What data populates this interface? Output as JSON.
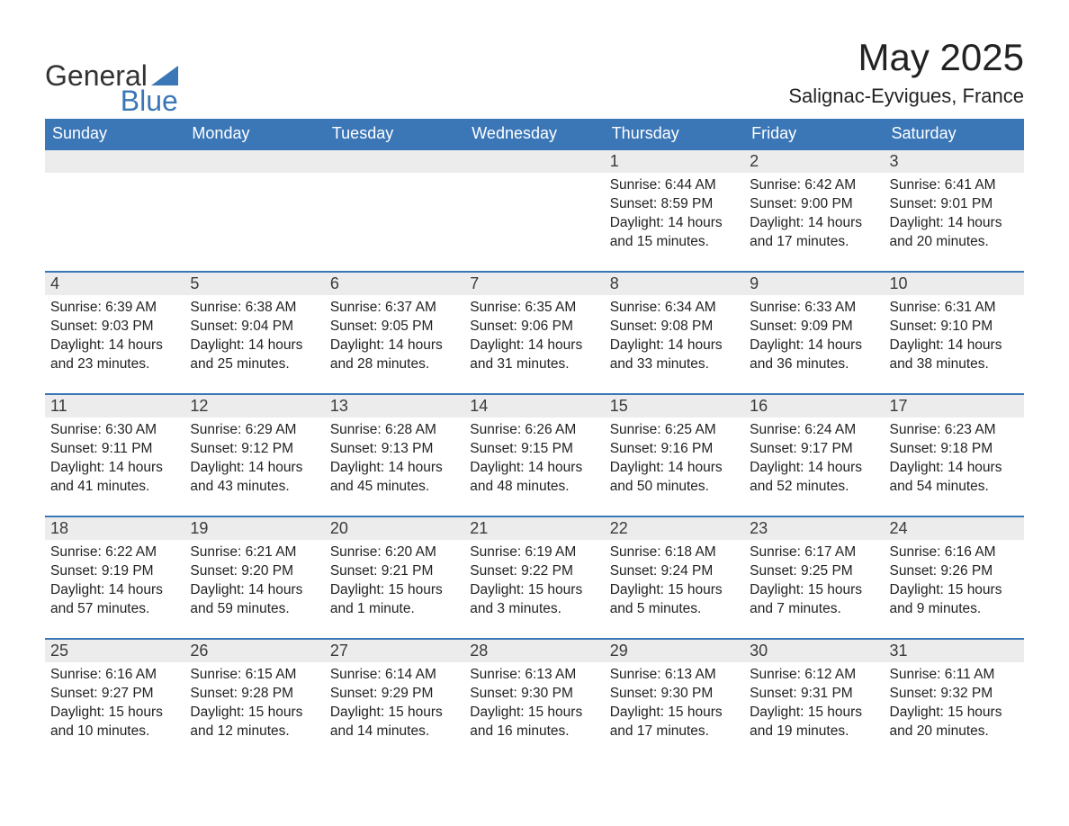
{
  "logo": {
    "word1": "General",
    "word2": "Blue",
    "accent_color": "#3b77b7"
  },
  "title": {
    "month": "May 2025",
    "location": "Salignac-Eyvigues, France"
  },
  "weekdays": [
    "Sunday",
    "Monday",
    "Tuesday",
    "Wednesday",
    "Thursday",
    "Friday",
    "Saturday"
  ],
  "style": {
    "header_bg": "#3b77b7",
    "header_fg": "#ffffff",
    "daynum_bg": "#ececec",
    "daynum_border": "#3b77b7",
    "font_family": "Arial",
    "title_fontsize": 42,
    "header_fontsize": 18,
    "body_fontsize": 15.5
  },
  "weeks": [
    [
      {
        "day": "",
        "empty": true
      },
      {
        "day": "",
        "empty": true
      },
      {
        "day": "",
        "empty": true
      },
      {
        "day": "",
        "empty": true
      },
      {
        "day": "1",
        "sunrise": "Sunrise: 6:44 AM",
        "sunset": "Sunset: 8:59 PM",
        "dl1": "Daylight: 14 hours",
        "dl2": "and 15 minutes."
      },
      {
        "day": "2",
        "sunrise": "Sunrise: 6:42 AM",
        "sunset": "Sunset: 9:00 PM",
        "dl1": "Daylight: 14 hours",
        "dl2": "and 17 minutes."
      },
      {
        "day": "3",
        "sunrise": "Sunrise: 6:41 AM",
        "sunset": "Sunset: 9:01 PM",
        "dl1": "Daylight: 14 hours",
        "dl2": "and 20 minutes."
      }
    ],
    [
      {
        "day": "4",
        "sunrise": "Sunrise: 6:39 AM",
        "sunset": "Sunset: 9:03 PM",
        "dl1": "Daylight: 14 hours",
        "dl2": "and 23 minutes."
      },
      {
        "day": "5",
        "sunrise": "Sunrise: 6:38 AM",
        "sunset": "Sunset: 9:04 PM",
        "dl1": "Daylight: 14 hours",
        "dl2": "and 25 minutes."
      },
      {
        "day": "6",
        "sunrise": "Sunrise: 6:37 AM",
        "sunset": "Sunset: 9:05 PM",
        "dl1": "Daylight: 14 hours",
        "dl2": "and 28 minutes."
      },
      {
        "day": "7",
        "sunrise": "Sunrise: 6:35 AM",
        "sunset": "Sunset: 9:06 PM",
        "dl1": "Daylight: 14 hours",
        "dl2": "and 31 minutes."
      },
      {
        "day": "8",
        "sunrise": "Sunrise: 6:34 AM",
        "sunset": "Sunset: 9:08 PM",
        "dl1": "Daylight: 14 hours",
        "dl2": "and 33 minutes."
      },
      {
        "day": "9",
        "sunrise": "Sunrise: 6:33 AM",
        "sunset": "Sunset: 9:09 PM",
        "dl1": "Daylight: 14 hours",
        "dl2": "and 36 minutes."
      },
      {
        "day": "10",
        "sunrise": "Sunrise: 6:31 AM",
        "sunset": "Sunset: 9:10 PM",
        "dl1": "Daylight: 14 hours",
        "dl2": "and 38 minutes."
      }
    ],
    [
      {
        "day": "11",
        "sunrise": "Sunrise: 6:30 AM",
        "sunset": "Sunset: 9:11 PM",
        "dl1": "Daylight: 14 hours",
        "dl2": "and 41 minutes."
      },
      {
        "day": "12",
        "sunrise": "Sunrise: 6:29 AM",
        "sunset": "Sunset: 9:12 PM",
        "dl1": "Daylight: 14 hours",
        "dl2": "and 43 minutes."
      },
      {
        "day": "13",
        "sunrise": "Sunrise: 6:28 AM",
        "sunset": "Sunset: 9:13 PM",
        "dl1": "Daylight: 14 hours",
        "dl2": "and 45 minutes."
      },
      {
        "day": "14",
        "sunrise": "Sunrise: 6:26 AM",
        "sunset": "Sunset: 9:15 PM",
        "dl1": "Daylight: 14 hours",
        "dl2": "and 48 minutes."
      },
      {
        "day": "15",
        "sunrise": "Sunrise: 6:25 AM",
        "sunset": "Sunset: 9:16 PM",
        "dl1": "Daylight: 14 hours",
        "dl2": "and 50 minutes."
      },
      {
        "day": "16",
        "sunrise": "Sunrise: 6:24 AM",
        "sunset": "Sunset: 9:17 PM",
        "dl1": "Daylight: 14 hours",
        "dl2": "and 52 minutes."
      },
      {
        "day": "17",
        "sunrise": "Sunrise: 6:23 AM",
        "sunset": "Sunset: 9:18 PM",
        "dl1": "Daylight: 14 hours",
        "dl2": "and 54 minutes."
      }
    ],
    [
      {
        "day": "18",
        "sunrise": "Sunrise: 6:22 AM",
        "sunset": "Sunset: 9:19 PM",
        "dl1": "Daylight: 14 hours",
        "dl2": "and 57 minutes."
      },
      {
        "day": "19",
        "sunrise": "Sunrise: 6:21 AM",
        "sunset": "Sunset: 9:20 PM",
        "dl1": "Daylight: 14 hours",
        "dl2": "and 59 minutes."
      },
      {
        "day": "20",
        "sunrise": "Sunrise: 6:20 AM",
        "sunset": "Sunset: 9:21 PM",
        "dl1": "Daylight: 15 hours",
        "dl2": "and 1 minute."
      },
      {
        "day": "21",
        "sunrise": "Sunrise: 6:19 AM",
        "sunset": "Sunset: 9:22 PM",
        "dl1": "Daylight: 15 hours",
        "dl2": "and 3 minutes."
      },
      {
        "day": "22",
        "sunrise": "Sunrise: 6:18 AM",
        "sunset": "Sunset: 9:24 PM",
        "dl1": "Daylight: 15 hours",
        "dl2": "and 5 minutes."
      },
      {
        "day": "23",
        "sunrise": "Sunrise: 6:17 AM",
        "sunset": "Sunset: 9:25 PM",
        "dl1": "Daylight: 15 hours",
        "dl2": "and 7 minutes."
      },
      {
        "day": "24",
        "sunrise": "Sunrise: 6:16 AM",
        "sunset": "Sunset: 9:26 PM",
        "dl1": "Daylight: 15 hours",
        "dl2": "and 9 minutes."
      }
    ],
    [
      {
        "day": "25",
        "sunrise": "Sunrise: 6:16 AM",
        "sunset": "Sunset: 9:27 PM",
        "dl1": "Daylight: 15 hours",
        "dl2": "and 10 minutes."
      },
      {
        "day": "26",
        "sunrise": "Sunrise: 6:15 AM",
        "sunset": "Sunset: 9:28 PM",
        "dl1": "Daylight: 15 hours",
        "dl2": "and 12 minutes."
      },
      {
        "day": "27",
        "sunrise": "Sunrise: 6:14 AM",
        "sunset": "Sunset: 9:29 PM",
        "dl1": "Daylight: 15 hours",
        "dl2": "and 14 minutes."
      },
      {
        "day": "28",
        "sunrise": "Sunrise: 6:13 AM",
        "sunset": "Sunset: 9:30 PM",
        "dl1": "Daylight: 15 hours",
        "dl2": "and 16 minutes."
      },
      {
        "day": "29",
        "sunrise": "Sunrise: 6:13 AM",
        "sunset": "Sunset: 9:30 PM",
        "dl1": "Daylight: 15 hours",
        "dl2": "and 17 minutes."
      },
      {
        "day": "30",
        "sunrise": "Sunrise: 6:12 AM",
        "sunset": "Sunset: 9:31 PM",
        "dl1": "Daylight: 15 hours",
        "dl2": "and 19 minutes."
      },
      {
        "day": "31",
        "sunrise": "Sunrise: 6:11 AM",
        "sunset": "Sunset: 9:32 PM",
        "dl1": "Daylight: 15 hours",
        "dl2": "and 20 minutes."
      }
    ]
  ]
}
